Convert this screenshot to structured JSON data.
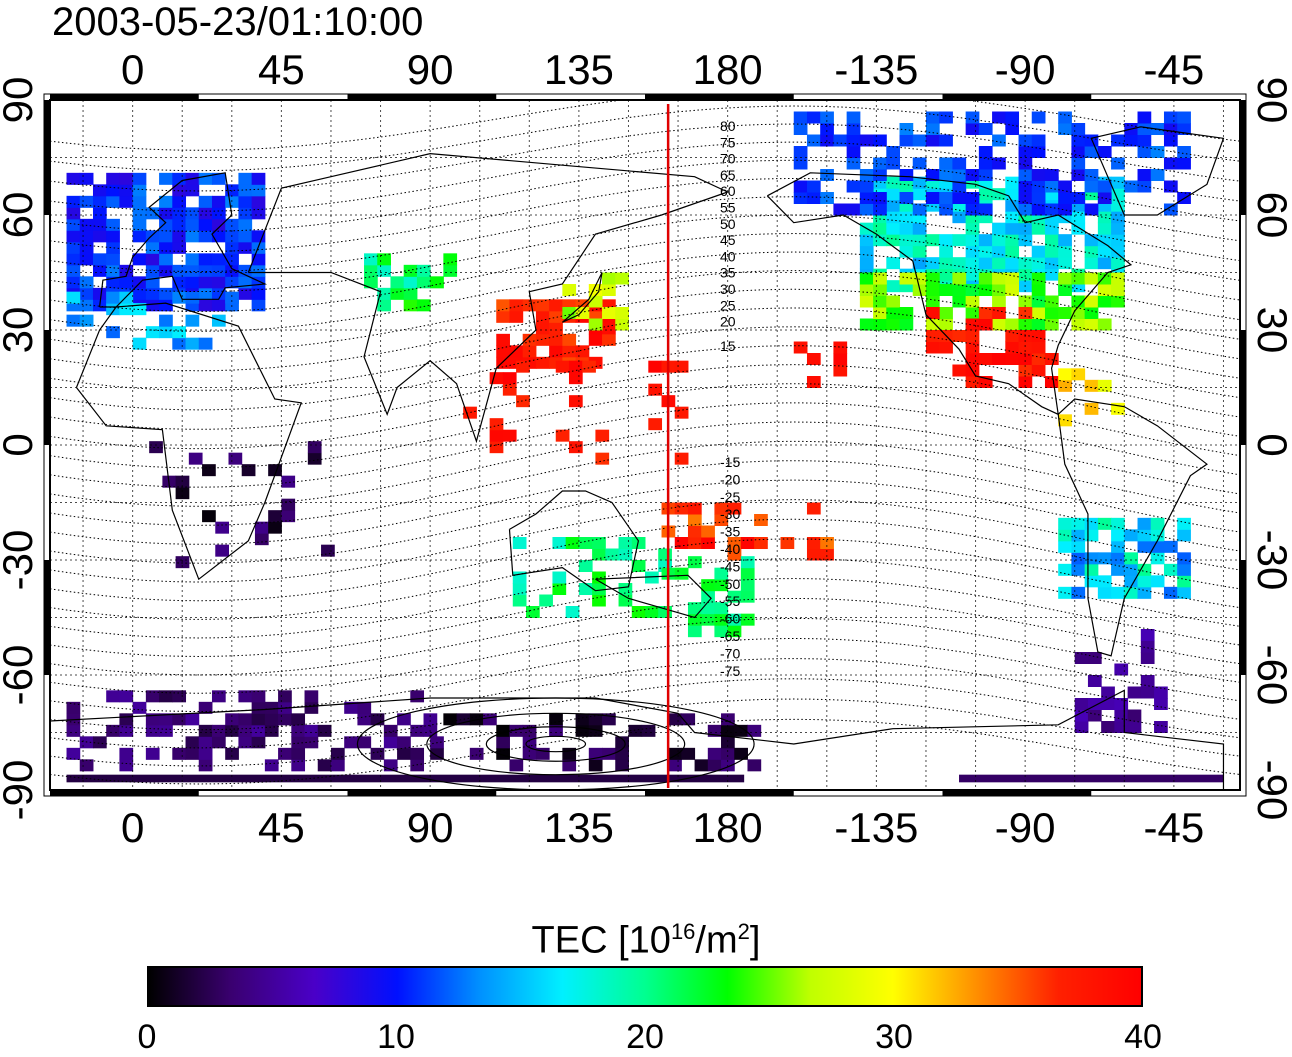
{
  "title": "2003-05-23/01:10:00",
  "map": {
    "lon_ticks_top": [
      "0",
      "45",
      "90",
      "135",
      "180",
      "-135",
      "-90",
      "-45"
    ],
    "lon_ticks_bottom": [
      "0",
      "45",
      "90",
      "135",
      "180",
      "-135",
      "-90",
      "-45"
    ],
    "lat_ticks_left": [
      "90",
      "60",
      "30",
      "0",
      "-30",
      "-60",
      "-90"
    ],
    "lat_ticks_right": [
      "90",
      "60",
      "30",
      "0",
      "-30",
      "-60",
      "-90"
    ],
    "lon_tick_values": [
      0,
      45,
      90,
      135,
      180,
      225,
      270,
      315
    ],
    "lat_tick_values": [
      90,
      60,
      30,
      0,
      -30,
      -60,
      -90
    ],
    "lon_range": [
      -25,
      335
    ],
    "lat_range": [
      -90,
      90
    ],
    "meridian_lon": 162,
    "meridian_color": "#e00000",
    "mag_lat_labels": [
      "80",
      "75",
      "70",
      "65",
      "60",
      "55",
      "50",
      "45",
      "40",
      "35",
      "30",
      "25",
      "20",
      "15",
      "-15",
      "-20",
      "-25",
      "-30",
      "-35",
      "-40",
      "-45",
      "-50",
      "-55",
      "-60",
      "-65",
      "-70",
      "-75"
    ],
    "grid": true
  },
  "colorbar": {
    "title_prefix": "TEC  [10",
    "title_exp": "16",
    "title_mid": "/m",
    "title_exp2": "2",
    "title_suffix": "]",
    "range": [
      0,
      40
    ],
    "tick_labels": [
      "0",
      "10",
      "20",
      "30",
      "40"
    ],
    "tick_values": [
      0,
      10,
      20,
      30,
      40
    ],
    "colors": [
      "#000000",
      "#3a0070",
      "#4a00c8",
      "#0010ff",
      "#0090ff",
      "#00f0ff",
      "#00ff90",
      "#00ff00",
      "#c0ff00",
      "#ffff00",
      "#ff9000",
      "#ff2000",
      "#ff0000"
    ]
  }
}
